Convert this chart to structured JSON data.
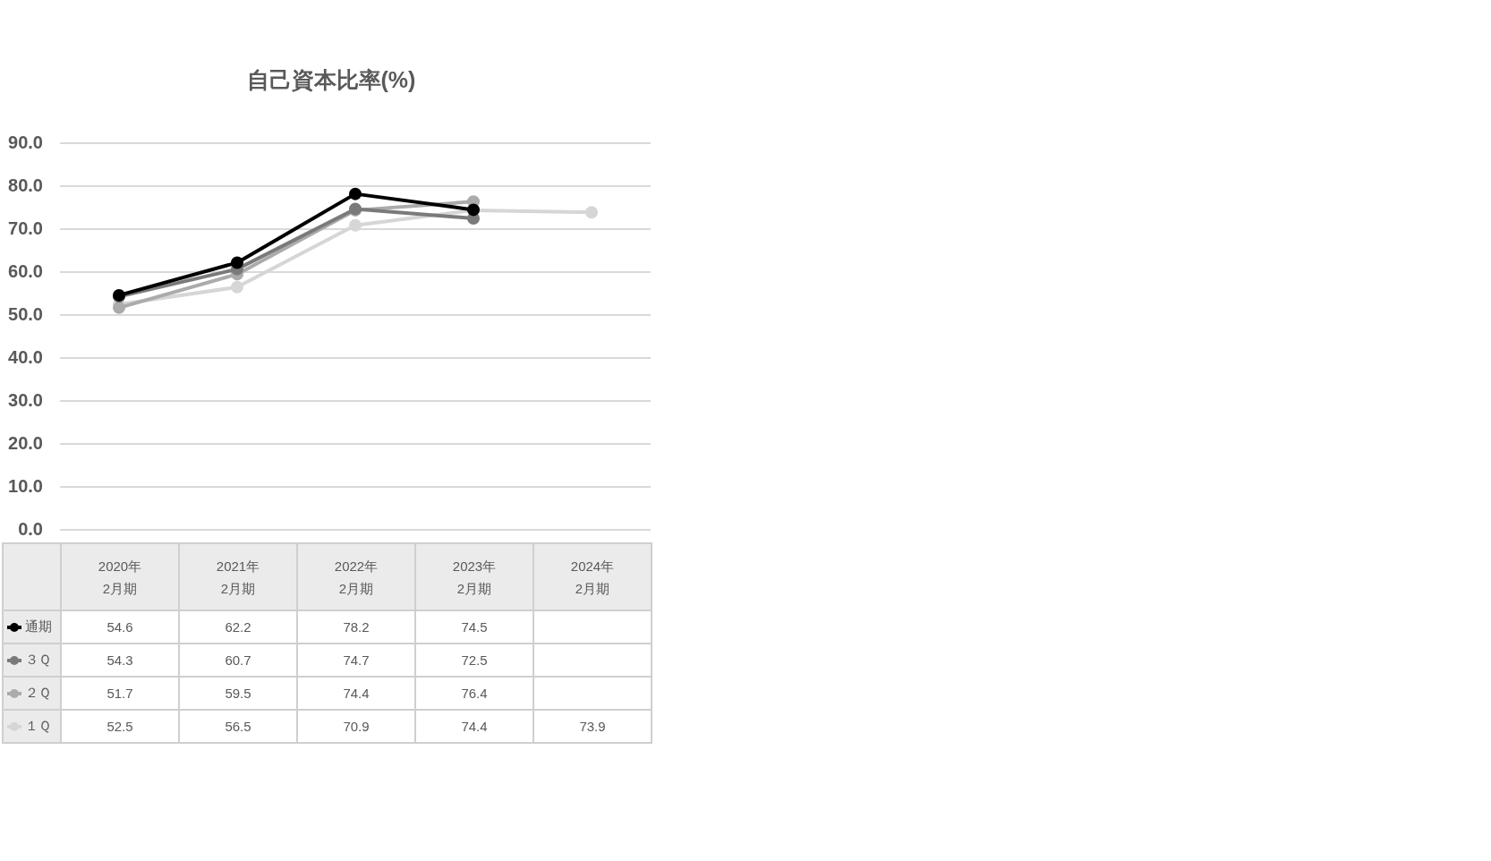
{
  "chart_data": {
    "type": "line",
    "title": "自己資本比率(%)",
    "categories": [
      "2020年2月期",
      "2021年2月期",
      "2022年2月期",
      "2023年2月期",
      "2024年2月期"
    ],
    "series": [
      {
        "name": "通期",
        "color": "#000000",
        "values": [
          54.6,
          62.2,
          78.2,
          74.5,
          null
        ]
      },
      {
        "name": "３Ｑ",
        "color": "#7a7a7a",
        "values": [
          54.3,
          60.7,
          74.7,
          72.5,
          null
        ]
      },
      {
        "name": "２Ｑ",
        "color": "#ababab",
        "values": [
          51.7,
          59.5,
          74.4,
          76.4,
          null
        ]
      },
      {
        "name": "１Ｑ",
        "color": "#d6d6d6",
        "values": [
          52.5,
          56.5,
          70.9,
          74.4,
          73.9
        ]
      }
    ],
    "ylim": [
      0,
      90
    ],
    "yticks": [
      {
        "value": 0,
        "label": "0.0"
      },
      {
        "value": 10,
        "label": "10.0"
      },
      {
        "value": 20,
        "label": "20.0"
      },
      {
        "value": 30,
        "label": "30.0"
      },
      {
        "value": 40,
        "label": "40.0"
      },
      {
        "value": 50,
        "label": "50.0"
      },
      {
        "value": 60,
        "label": "60.0"
      },
      {
        "value": 70,
        "label": "70.0"
      },
      {
        "value": 80,
        "label": "80.0"
      },
      {
        "value": 90,
        "label": "90.0"
      }
    ],
    "grid": "y",
    "legend": "bottom left",
    "marker": "circle",
    "data_labels": true
  }
}
